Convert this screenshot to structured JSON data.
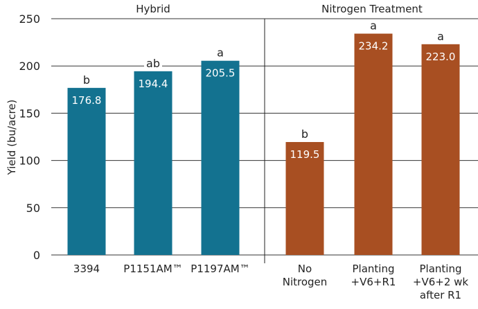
{
  "chart_data": {
    "type": "bar",
    "ylabel": "Yield (bu/acre)",
    "ylim": [
      0,
      250
    ],
    "yticks": [
      0,
      50,
      100,
      150,
      200,
      250
    ],
    "grid": true,
    "groups": [
      {
        "title": "Hybrid",
        "color": "#137290",
        "categories": [
          [
            "3394"
          ],
          [
            "P1151AM™"
          ],
          [
            "P1197AM™"
          ]
        ],
        "values": [
          176.8,
          194.4,
          205.5
        ],
        "value_labels": [
          "176.8",
          "194.4",
          "205.5"
        ],
        "letters": [
          "b",
          "ab",
          "a"
        ]
      },
      {
        "title": "Nitrogen Treatment",
        "color": "#A84F22",
        "categories": [
          [
            "No",
            "Nitrogen"
          ],
          [
            "Planting",
            "+V6+R1"
          ],
          [
            "Planting",
            "+V6+2 wk",
            "after R1"
          ]
        ],
        "values": [
          119.5,
          234.2,
          223.0
        ],
        "value_labels": [
          "119.5",
          "234.2",
          "223.0"
        ],
        "letters": [
          "b",
          "a",
          "a"
        ]
      }
    ]
  }
}
